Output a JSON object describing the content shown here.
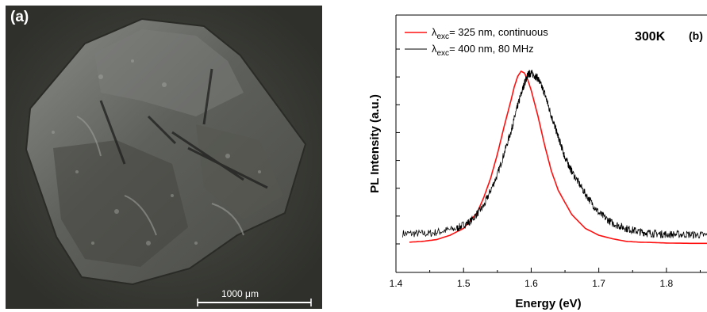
{
  "panel_a": {
    "label": "(a)",
    "scale_bar_label": "1000 μm"
  },
  "chart_data": {
    "type": "line",
    "panel_label": "(b)",
    "temperature_label": "300K",
    "xlabel": "Energy (eV)",
    "ylabel": "PL Intensity (a.u.)",
    "xlim": [
      1.4,
      1.86
    ],
    "x_ticks": [
      "1.4",
      "1.5",
      "1.6",
      "1.7",
      "1.8"
    ],
    "y_ticks_count": 8,
    "legend_position": "top-left",
    "series": [
      {
        "label_sub": "exc",
        "label_rest": "=  325 nm, continuous",
        "color": "#ff1010",
        "x": [
          1.42,
          1.44,
          1.46,
          1.48,
          1.5,
          1.52,
          1.53,
          1.54,
          1.55,
          1.56,
          1.57,
          1.575,
          1.58,
          1.585,
          1.59,
          1.595,
          1.6,
          1.61,
          1.62,
          1.63,
          1.64,
          1.66,
          1.68,
          1.7,
          1.72,
          1.74,
          1.76,
          1.78,
          1.8,
          1.84,
          1.86
        ],
        "y": [
          0.01,
          0.015,
          0.025,
          0.05,
          0.09,
          0.18,
          0.27,
          0.38,
          0.52,
          0.68,
          0.83,
          0.91,
          0.97,
          1.0,
          0.99,
          0.95,
          0.89,
          0.74,
          0.57,
          0.42,
          0.31,
          0.17,
          0.09,
          0.05,
          0.03,
          0.015,
          0.01,
          0.008,
          0.005,
          0.003,
          0.003
        ]
      },
      {
        "label_sub": "exc",
        "label_rest": "= 400 nm, 80 MHz",
        "color": "#000000",
        "x": [
          1.41,
          1.45,
          1.49,
          1.51,
          1.53,
          1.55,
          1.57,
          1.58,
          1.59,
          1.595,
          1.6,
          1.61,
          1.62,
          1.63,
          1.64,
          1.65,
          1.66,
          1.68,
          1.7,
          1.72,
          1.74,
          1.76,
          1.78,
          1.8,
          1.83,
          1.86
        ],
        "y": [
          0.06,
          0.06,
          0.09,
          0.13,
          0.22,
          0.4,
          0.65,
          0.8,
          0.93,
          0.98,
          0.99,
          0.96,
          0.87,
          0.74,
          0.62,
          0.5,
          0.42,
          0.29,
          0.18,
          0.12,
          0.09,
          0.07,
          0.06,
          0.055,
          0.055,
          0.05
        ]
      }
    ]
  }
}
